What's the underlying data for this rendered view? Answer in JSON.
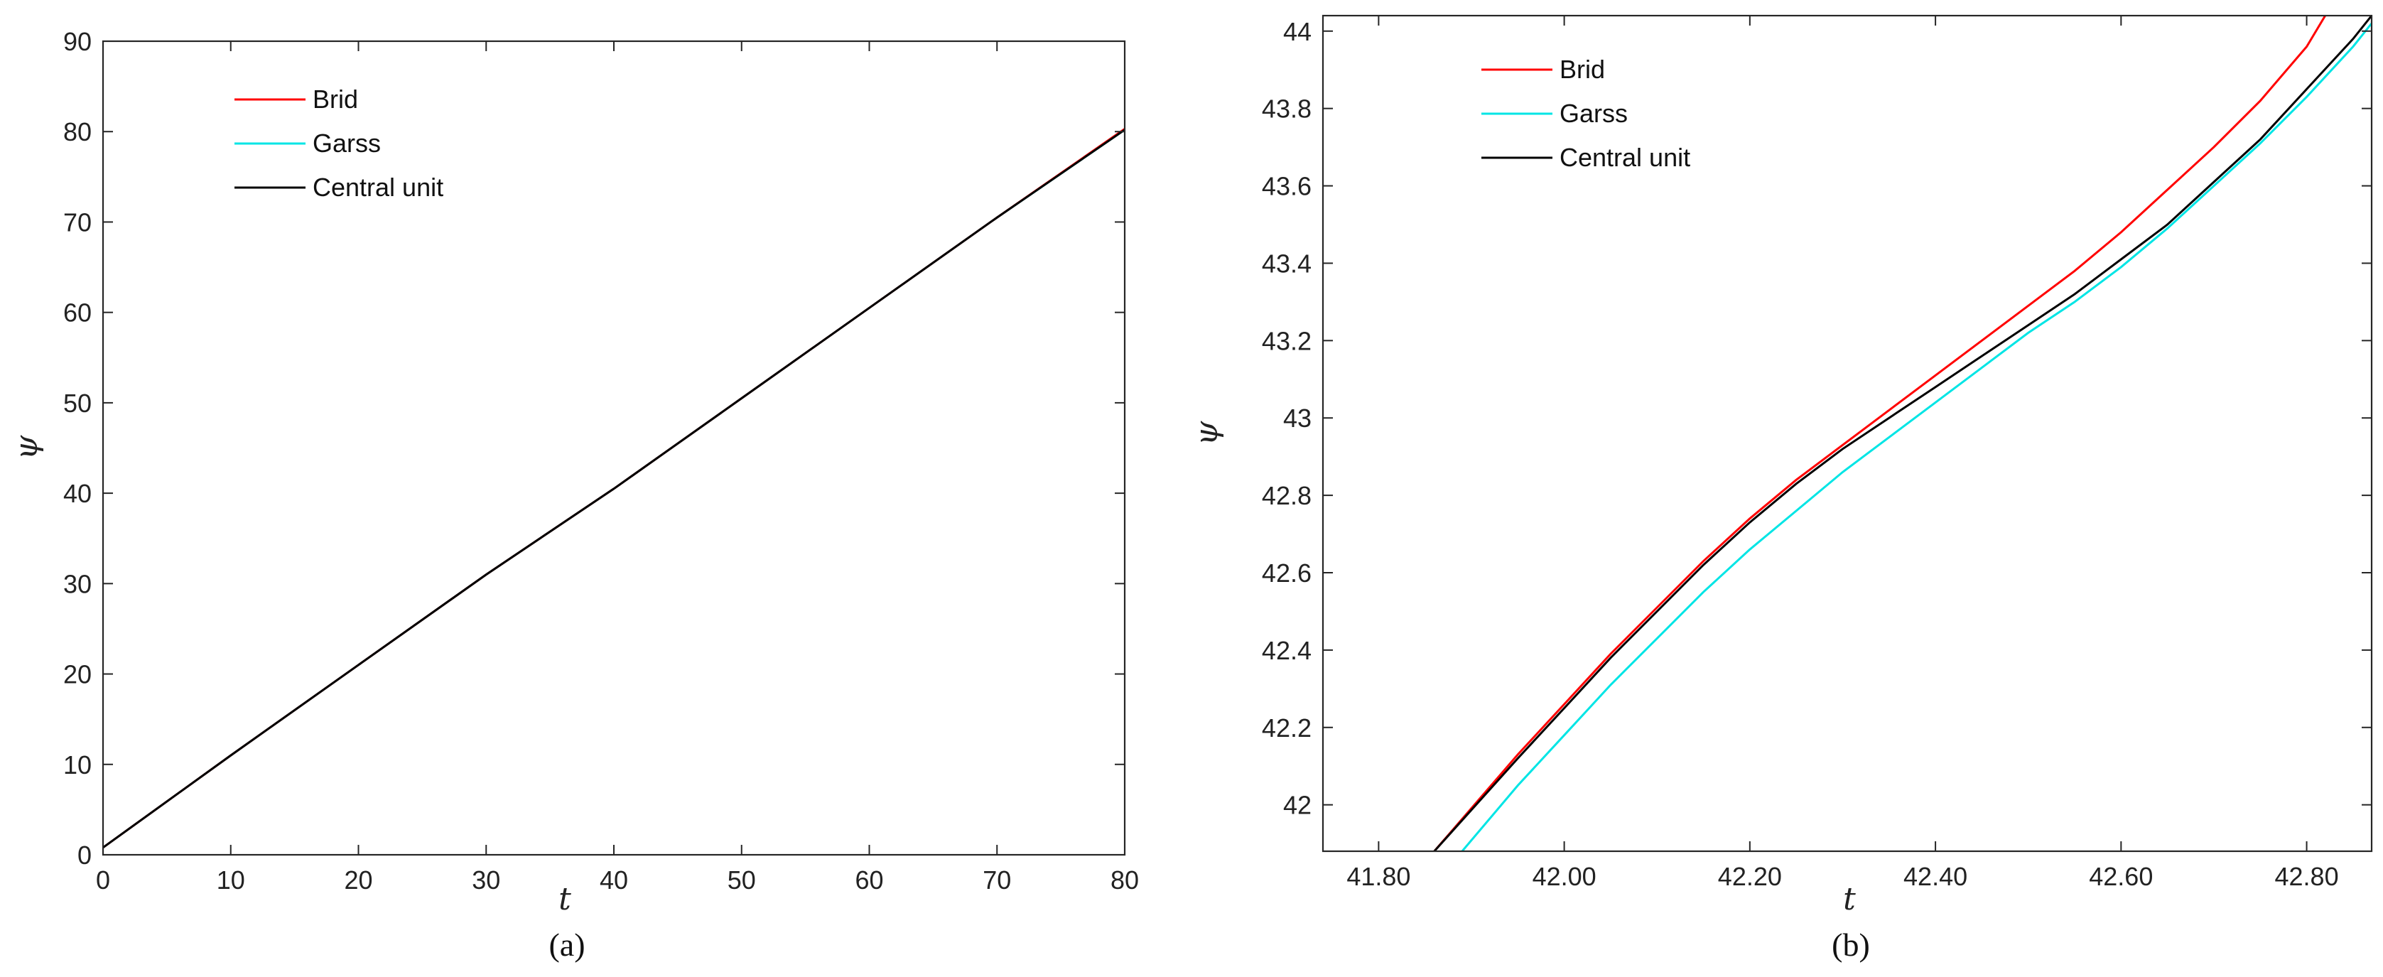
{
  "chart_data": [
    {
      "type": "line",
      "caption": "(a)",
      "xlabel": "t",
      "ylabel": "ψ",
      "xlim": [
        0,
        80
      ],
      "ylim": [
        0,
        90
      ],
      "x_ticks": [
        "0",
        "10",
        "20",
        "30",
        "40",
        "50",
        "60",
        "70",
        "80"
      ],
      "y_ticks": [
        "0",
        "10",
        "20",
        "30",
        "40",
        "50",
        "60",
        "70",
        "80",
        "90"
      ],
      "grid": false,
      "legend_position": "top-left",
      "series": [
        {
          "name": "Brid",
          "color": "#ff0000",
          "x": [
            0,
            10,
            20,
            30,
            40,
            50,
            60,
            70,
            80
          ],
          "y": [
            0.8,
            11,
            21,
            31,
            40.5,
            50.5,
            60.5,
            70.5,
            80.3
          ]
        },
        {
          "name": "Garss",
          "color": "#00e5e5",
          "x": [
            0,
            10,
            20,
            30,
            40,
            50,
            60,
            70,
            80
          ],
          "y": [
            0.8,
            11,
            21,
            31,
            40.5,
            50.5,
            60.5,
            70.5,
            80.2
          ]
        },
        {
          "name": "Central unit",
          "color": "#000000",
          "x": [
            0,
            10,
            20,
            30,
            40,
            50,
            60,
            70,
            80
          ],
          "y": [
            0.8,
            11,
            21,
            31,
            40.5,
            50.5,
            60.5,
            70.5,
            80.2
          ]
        }
      ]
    },
    {
      "type": "line",
      "caption": "(b)",
      "xlabel": "t",
      "ylabel": "ψ",
      "xlim": [
        41.74,
        42.87
      ],
      "ylim": [
        41.88,
        44.04
      ],
      "x_ticks": [
        "41.80",
        "42.00",
        "42.20",
        "42.40",
        "42.60",
        "42.80"
      ],
      "y_ticks": [
        "42",
        "42.2",
        "42.4",
        "42.6",
        "42.8",
        "43",
        "43.2",
        "43.4",
        "43.6",
        "43.8",
        "44"
      ],
      "grid": false,
      "legend_position": "top-left",
      "series": [
        {
          "name": "Brid",
          "color": "#ff0000",
          "x": [
            41.86,
            41.95,
            42.0,
            42.05,
            42.1,
            42.15,
            42.2,
            42.25,
            42.3,
            42.35,
            42.4,
            42.45,
            42.5,
            42.55,
            42.6,
            42.65,
            42.7,
            42.75,
            42.8,
            42.82
          ],
          "y": [
            41.88,
            42.13,
            42.26,
            42.39,
            42.51,
            42.63,
            42.74,
            42.84,
            42.93,
            43.02,
            43.11,
            43.2,
            43.29,
            43.38,
            43.48,
            43.59,
            43.7,
            43.82,
            43.96,
            44.04
          ]
        },
        {
          "name": "Garss",
          "color": "#00e5e5",
          "x": [
            41.89,
            41.95,
            42.0,
            42.05,
            42.1,
            42.15,
            42.2,
            42.25,
            42.3,
            42.35,
            42.4,
            42.45,
            42.5,
            42.55,
            42.6,
            42.65,
            42.7,
            42.75,
            42.8,
            42.85,
            42.87
          ],
          "y": [
            41.88,
            42.05,
            42.18,
            42.31,
            42.43,
            42.55,
            42.66,
            42.76,
            42.86,
            42.95,
            43.04,
            43.13,
            43.22,
            43.3,
            43.39,
            43.49,
            43.6,
            43.71,
            43.83,
            43.96,
            44.02
          ]
        },
        {
          "name": "Central unit",
          "color": "#000000",
          "x": [
            41.86,
            41.95,
            42.0,
            42.05,
            42.1,
            42.15,
            42.2,
            42.25,
            42.3,
            42.35,
            42.4,
            42.45,
            42.5,
            42.55,
            42.6,
            42.65,
            42.7,
            42.75,
            42.8,
            42.85,
            42.87
          ],
          "y": [
            41.88,
            42.12,
            42.25,
            42.38,
            42.5,
            42.62,
            42.73,
            42.83,
            42.92,
            43.0,
            43.08,
            43.16,
            43.24,
            43.32,
            43.41,
            43.5,
            43.61,
            43.72,
            43.85,
            43.98,
            44.04
          ]
        }
      ]
    }
  ]
}
